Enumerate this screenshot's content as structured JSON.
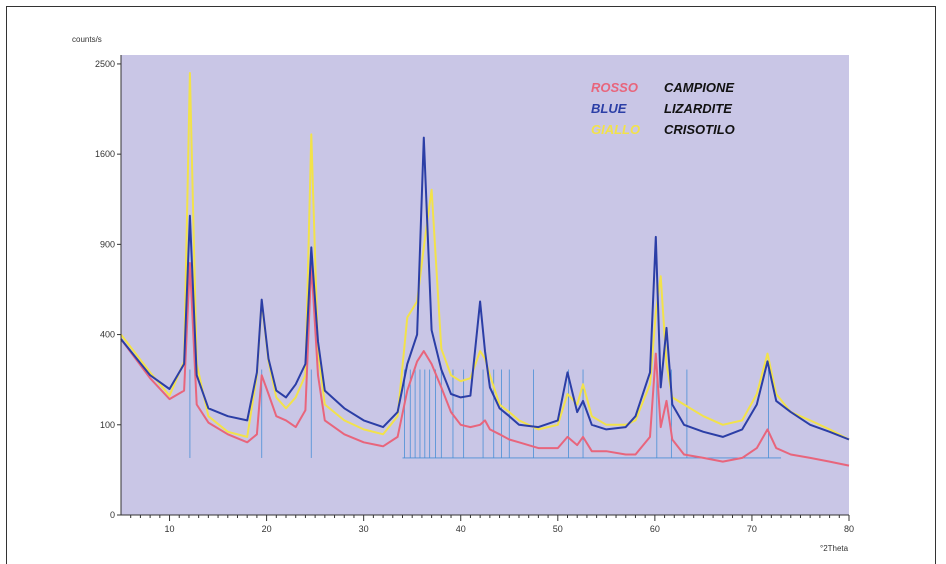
{
  "chart_data": {
    "type": "line",
    "title": "",
    "ylabel": "counts/s",
    "xlabel": "°2Theta",
    "xlim": [
      5,
      80
    ],
    "ylim": [
      0,
      2600
    ],
    "x_ticks": [
      10,
      20,
      30,
      40,
      50,
      60,
      70,
      80
    ],
    "y_ticks": [
      {
        "value": 0,
        "label": "0"
      },
      {
        "value": 100,
        "label": "100"
      },
      {
        "value": 400,
        "label": "400"
      },
      {
        "value": 900,
        "label": "900"
      },
      {
        "value": 1600,
        "label": "1600"
      },
      {
        "value": 2500,
        "label": "2500"
      }
    ],
    "y_scale": "sqrt",
    "grid": false,
    "legend_position": "top-right",
    "legend": [
      {
        "key": "ROSSO",
        "name": "CAMPIONE",
        "color": "#e8657c"
      },
      {
        "key": "BLUE",
        "name": "LIZARDITE",
        "color": "#2b3ea6"
      },
      {
        "key": "GIALLO",
        "name": "CRISOTILO",
        "color": "#f2e24a"
      }
    ],
    "reference_color": "#4a8fd6",
    "series": [
      {
        "key": "campione",
        "color": "#e8657c",
        "x": [
          5,
          8,
          10,
          11.5,
          12.1,
          12.8,
          14,
          16,
          18,
          19,
          19.5,
          20.2,
          21,
          22,
          23,
          24,
          24.6,
          25.3,
          26,
          28,
          30,
          32,
          33.5,
          34.5,
          35.5,
          36.2,
          37,
          38,
          39,
          40,
          41,
          42,
          42.5,
          43,
          44,
          45,
          46,
          48,
          50,
          51,
          52,
          52.6,
          53.5,
          55,
          57,
          58,
          59.5,
          60.1,
          60.6,
          61.2,
          61.8,
          63,
          65,
          67,
          69,
          70.5,
          71.6,
          72.5,
          74,
          76,
          78,
          80
        ],
        "y": [
          380,
          230,
          165,
          190,
          780,
          150,
          105,
          80,
          65,
          80,
          240,
          180,
          120,
          110,
          95,
          135,
          780,
          240,
          110,
          80,
          65,
          58,
          75,
          190,
          290,
          330,
          280,
          200,
          130,
          100,
          95,
          100,
          110,
          90,
          80,
          70,
          65,
          55,
          55,
          75,
          60,
          75,
          50,
          50,
          45,
          45,
          75,
          320,
          95,
          160,
          70,
          45,
          40,
          35,
          40,
          55,
          90,
          55,
          45,
          40,
          35,
          30
        ]
      },
      {
        "key": "lizardite",
        "color": "#2b3ea6",
        "x": [
          5,
          8,
          10,
          11.5,
          12.1,
          12.8,
          14,
          16,
          18,
          19,
          19.5,
          20.2,
          21,
          22,
          23,
          24,
          24.6,
          25.3,
          26,
          28,
          30,
          32,
          33.5,
          34.5,
          35.5,
          36.2,
          37,
          38,
          39,
          40,
          41,
          42,
          42.5,
          43,
          44,
          45,
          46,
          48,
          50,
          51,
          52,
          52.6,
          53.5,
          55,
          57,
          58,
          59.5,
          60.1,
          60.6,
          61.2,
          61.8,
          63,
          65,
          67,
          69,
          70.5,
          71.6,
          72.5,
          74,
          76,
          78,
          80
        ],
        "y": [
          380,
          240,
          195,
          280,
          1100,
          240,
          140,
          120,
          110,
          250,
          570,
          300,
          190,
          170,
          210,
          280,
          880,
          370,
          190,
          140,
          110,
          95,
          130,
          280,
          400,
          1750,
          420,
          260,
          180,
          170,
          175,
          560,
          330,
          200,
          140,
          120,
          100,
          95,
          110,
          250,
          130,
          160,
          100,
          90,
          95,
          120,
          250,
          950,
          200,
          430,
          150,
          100,
          85,
          75,
          90,
          150,
          290,
          160,
          130,
          100,
          85,
          70
        ]
      },
      {
        "key": "crisotilo",
        "color": "#f2e24a",
        "x": [
          5,
          8,
          10,
          11.5,
          12.1,
          12.8,
          14,
          16,
          18,
          19,
          19.5,
          20.2,
          21,
          22,
          23,
          24,
          24.6,
          25.3,
          26,
          28,
          30,
          32,
          33.5,
          34.5,
          35.5,
          36.2,
          37,
          38,
          39,
          40,
          41,
          42,
          42.5,
          43,
          44,
          45,
          46,
          48,
          50,
          51,
          52,
          52.6,
          53.5,
          55,
          57,
          58,
          59.5,
          60.1,
          60.6,
          61.2,
          61.8,
          63,
          65,
          67,
          69,
          70.5,
          71.6,
          72.5,
          74,
          76,
          78,
          80
        ],
        "y": [
          400,
          250,
          175,
          290,
          2400,
          280,
          120,
          85,
          75,
          240,
          560,
          290,
          170,
          140,
          170,
          240,
          1780,
          330,
          150,
          110,
          90,
          80,
          120,
          480,
          560,
          880,
          1300,
          340,
          240,
          220,
          230,
          330,
          300,
          240,
          150,
          130,
          110,
          90,
          100,
          180,
          150,
          210,
          120,
          100,
          100,
          110,
          210,
          500,
          700,
          280,
          170,
          150,
          120,
          100,
          110,
          180,
          320,
          180,
          130,
          110,
          90,
          70
        ]
      }
    ],
    "reference_peaks": [
      12.1,
      19.5,
      24.6,
      34.2,
      34.8,
      35.3,
      35.8,
      36.3,
      36.8,
      37.4,
      38.0,
      39.2,
      40.3,
      42.3,
      43.4,
      44.2,
      45.0,
      47.5,
      51.1,
      52.6,
      60.2,
      61.7,
      63.3,
      71.7
    ]
  }
}
